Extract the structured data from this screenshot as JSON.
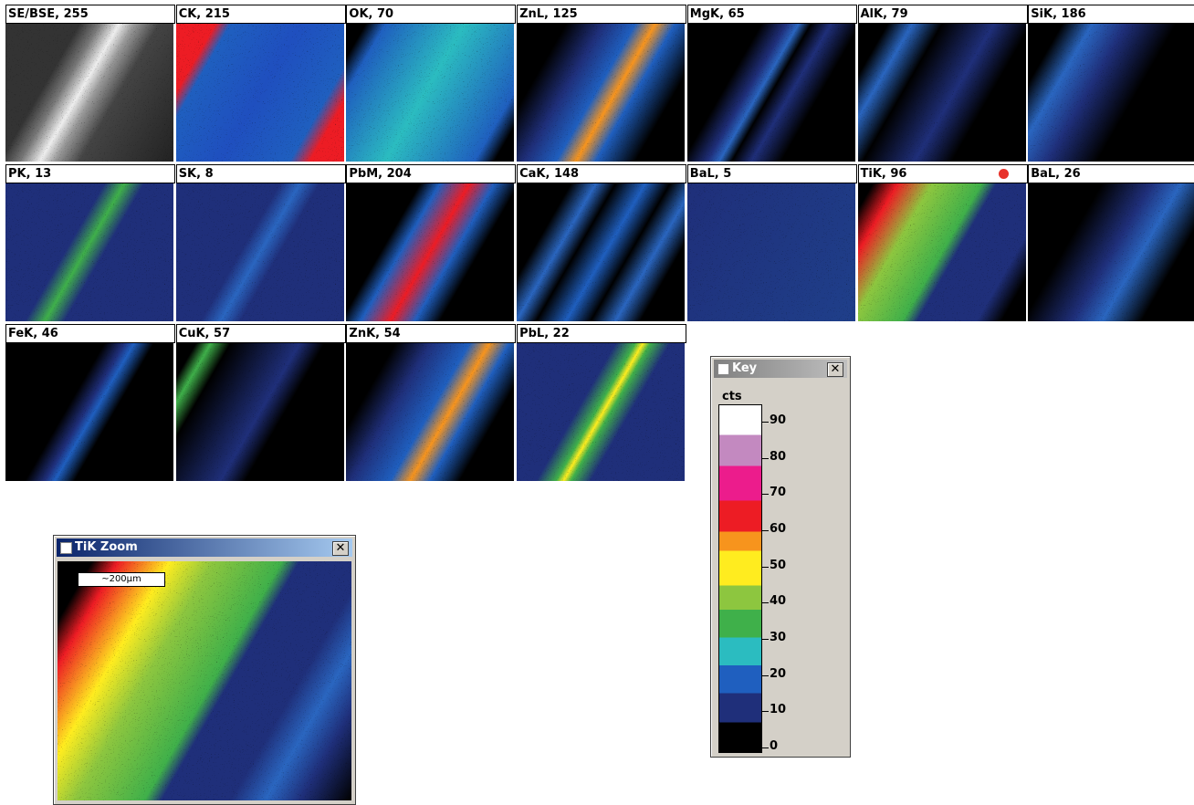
{
  "tiles": [
    {
      "label": "SE/BSE, 255"
    },
    {
      "label": "CK, 215"
    },
    {
      "label": "OK, 70"
    },
    {
      "label": "ZnL, 125"
    },
    {
      "label": "MgK, 65"
    },
    {
      "label": "AlK, 79"
    },
    {
      "label": "SiK, 186"
    },
    {
      "label": "PK, 13"
    },
    {
      "label": "SK, 8"
    },
    {
      "label": "PbM, 204"
    },
    {
      "label": "CaK, 148"
    },
    {
      "label": "BaL, 5"
    },
    {
      "label": "TiK, 96"
    },
    {
      "label": "BaL, 26"
    },
    {
      "label": "FeK, 46"
    },
    {
      "label": "CuK, 57"
    },
    {
      "label": "ZnK, 54"
    },
    {
      "label": "PbL, 22"
    }
  ],
  "key": {
    "title": "Key",
    "unit": "cts",
    "ticks": [
      0,
      10,
      20,
      30,
      40,
      50,
      60,
      70,
      80,
      90
    ]
  },
  "zoom": {
    "title": "TiK Zoom",
    "scale_bar": "~200µm"
  }
}
